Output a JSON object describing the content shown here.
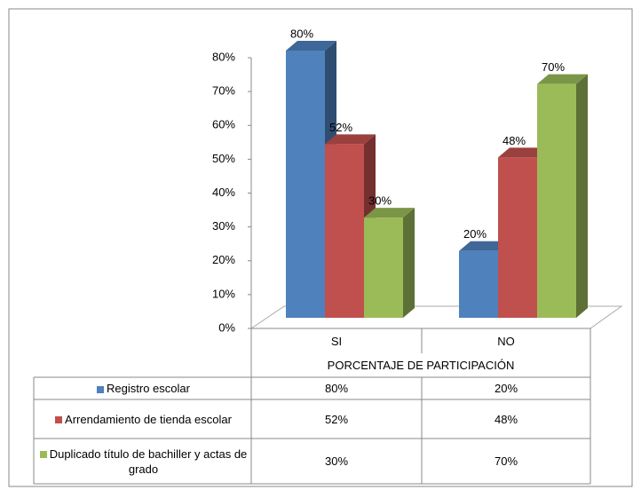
{
  "chart_data": {
    "type": "bar3d",
    "x_title": "PORCENTAJE DE PARTICIPACIÓN",
    "categories": [
      "SI",
      "NO"
    ],
    "series": [
      {
        "name": "Registro escolar",
        "color": "#4f81bd",
        "values": [
          80,
          20
        ],
        "value_labels": [
          "80%",
          "20%"
        ]
      },
      {
        "name": "Arrendamiento de tienda escolar",
        "color": "#c0504d",
        "values": [
          52,
          48
        ],
        "value_labels": [
          "52%",
          "48%"
        ]
      },
      {
        "name": "Duplicado título  de bachiller y actas de grado",
        "color": "#9bbb59",
        "values": [
          30,
          70
        ],
        "value_labels": [
          "30%",
          "70%"
        ]
      }
    ],
    "ylim": [
      0,
      80
    ],
    "yticks": [
      {
        "value": 0,
        "label": "0%"
      },
      {
        "value": 10,
        "label": "10%"
      },
      {
        "value": 20,
        "label": "20%"
      },
      {
        "value": 30,
        "label": "30%"
      },
      {
        "value": 40,
        "label": "40%"
      },
      {
        "value": 50,
        "label": "50%"
      },
      {
        "value": 60,
        "label": "60%"
      },
      {
        "value": 70,
        "label": "70%"
      },
      {
        "value": 80,
        "label": "80%"
      }
    ],
    "data_table": true
  }
}
